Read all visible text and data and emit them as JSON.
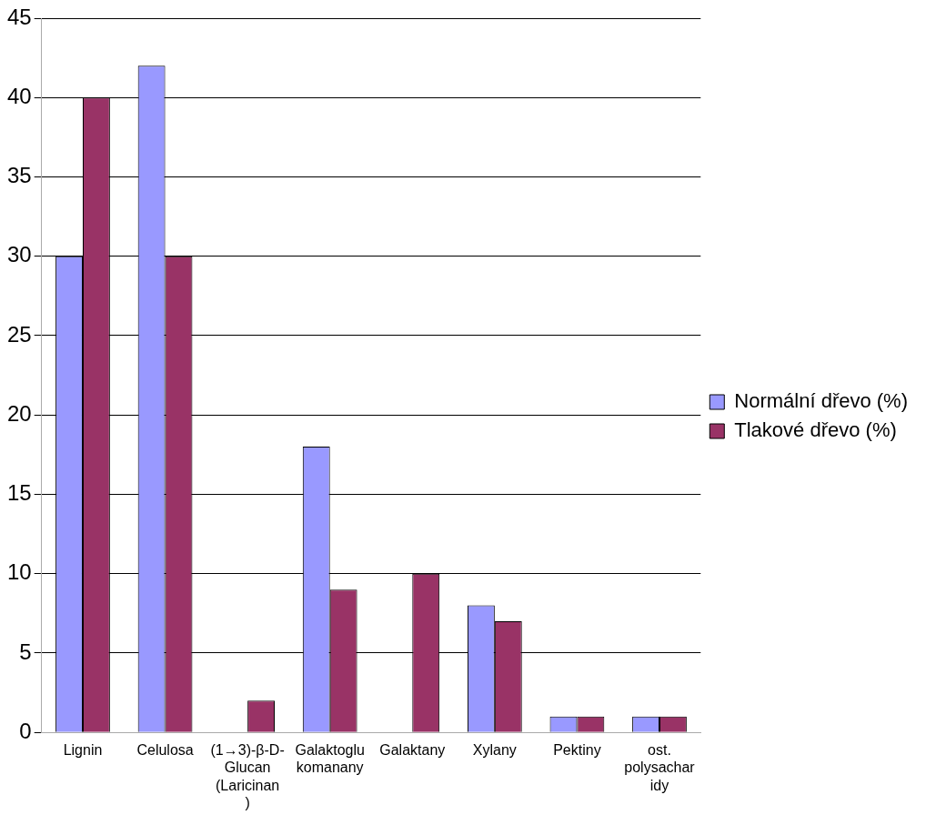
{
  "chart_data": {
    "type": "bar",
    "categories": [
      "Lignin",
      "Celulosa",
      "(1→3)-β-D-Glucan (Laricinan)",
      "Galaktoglukomanany",
      "Galaktany",
      "Xylany",
      "Pektiny",
      "ost. polysacharidy"
    ],
    "series": [
      {
        "name": "Normální dřevo (%)",
        "color": "#9999ff",
        "values": [
          30,
          42,
          null,
          18,
          null,
          8,
          1,
          1
        ]
      },
      {
        "name": "Tlakové dřevo (%)",
        "color": "#993366",
        "values": [
          40,
          30,
          2,
          9,
          10,
          7,
          1,
          1
        ]
      }
    ],
    "ylim": [
      0,
      45
    ],
    "yticks": [
      0,
      5,
      10,
      15,
      20,
      25,
      30,
      35,
      40,
      45
    ],
    "grid": "y",
    "legend": "right"
  }
}
